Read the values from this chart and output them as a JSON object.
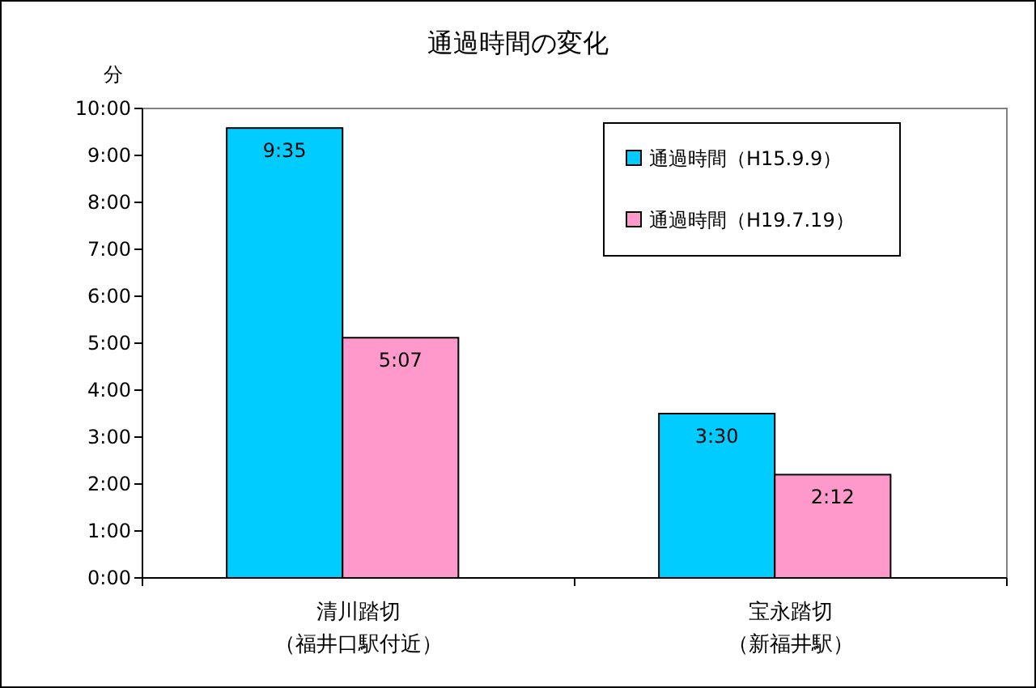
{
  "chart_data": {
    "type": "bar",
    "title": "通過時間の変化",
    "ylabel": "分",
    "categories": [
      "清川踏切（福井口駅付近）",
      "宝永踏切（新福井駅）"
    ],
    "series": [
      {
        "name": "通過時間（H15.9.9）",
        "color": "#00ccff",
        "values": [
          9.5833,
          3.5
        ],
        "value_labels": [
          "9:35",
          "3:30"
        ]
      },
      {
        "name": "通過時間（H19.7.19）",
        "color": "#ff99cc",
        "values": [
          5.1167,
          2.2
        ],
        "value_labels": [
          "5:07",
          "2:12"
        ]
      }
    ],
    "ylim": [
      0,
      10
    ],
    "yticks": [
      {
        "value": 0,
        "label": "0:00"
      },
      {
        "value": 1,
        "label": "1:00"
      },
      {
        "value": 2,
        "label": "2:00"
      },
      {
        "value": 3,
        "label": "3:00"
      },
      {
        "value": 4,
        "label": "4:00"
      },
      {
        "value": 5,
        "label": "5:00"
      },
      {
        "value": 6,
        "label": "6:00"
      },
      {
        "value": 7,
        "label": "7:00"
      },
      {
        "value": 8,
        "label": "8:00"
      },
      {
        "value": 9,
        "label": "9:00"
      },
      {
        "value": 10,
        "label": "10:00"
      }
    ],
    "grid": false,
    "legend": "top right"
  }
}
